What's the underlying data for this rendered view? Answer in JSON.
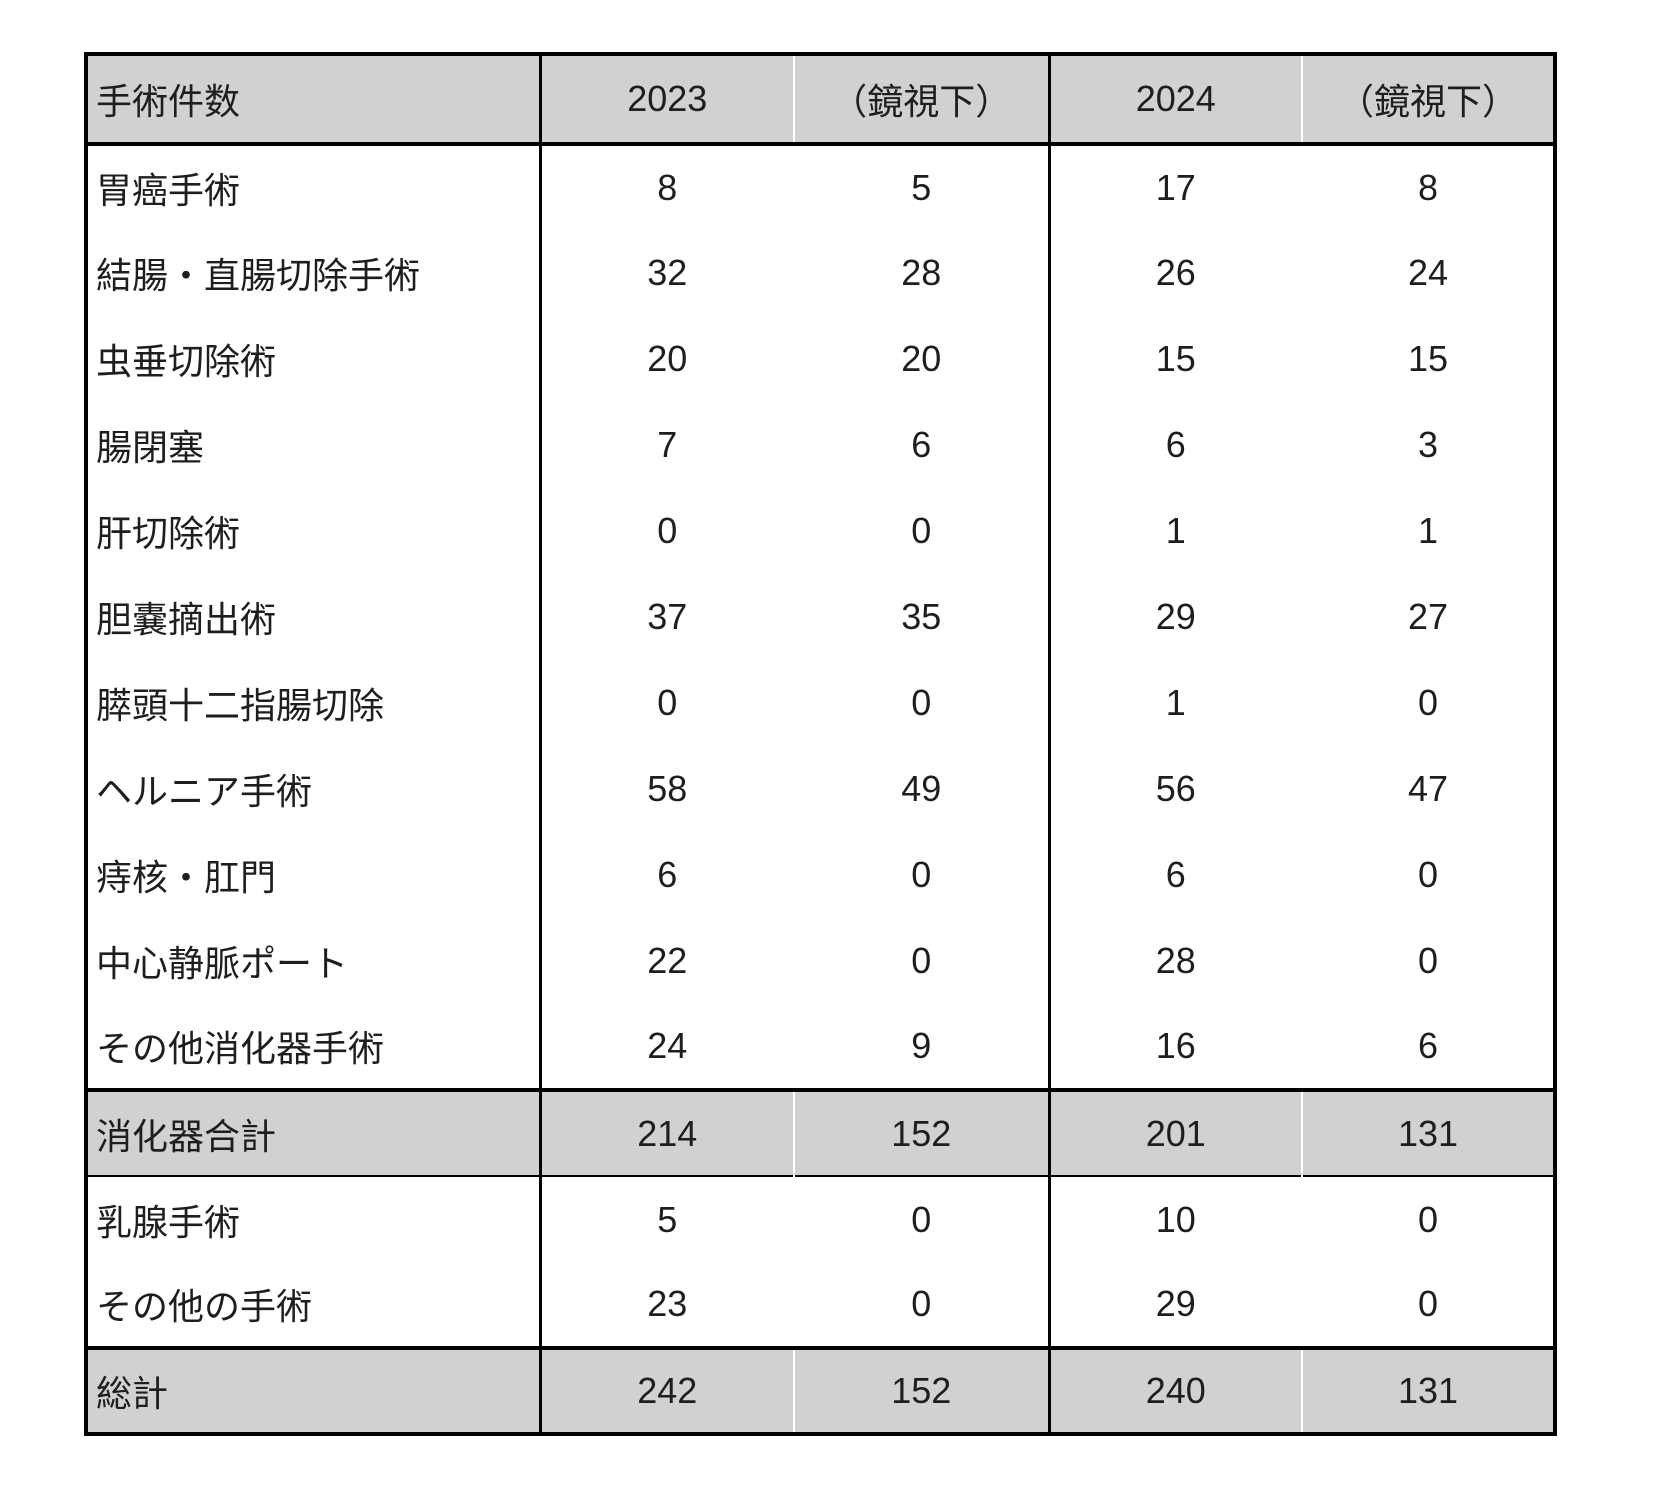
{
  "table": {
    "title_cell": "手術件数",
    "columns": [
      "2023",
      "（鏡視下）",
      "2024",
      "（鏡視下）"
    ],
    "rows": [
      {
        "label": "胃癌手術",
        "values": [
          "8",
          "5",
          "17",
          "8"
        ],
        "type": "data"
      },
      {
        "label": "結腸・直腸切除手術",
        "values": [
          "32",
          "28",
          "26",
          "24"
        ],
        "type": "data"
      },
      {
        "label": "虫垂切除術",
        "values": [
          "20",
          "20",
          "15",
          "15"
        ],
        "type": "data"
      },
      {
        "label": "腸閉塞",
        "values": [
          "7",
          "6",
          "6",
          "3"
        ],
        "type": "data"
      },
      {
        "label": "肝切除術",
        "values": [
          "0",
          "0",
          "1",
          "1"
        ],
        "type": "data"
      },
      {
        "label": "胆嚢摘出術",
        "values": [
          "37",
          "35",
          "29",
          "27"
        ],
        "type": "data"
      },
      {
        "label": "膵頭十二指腸切除",
        "values": [
          "0",
          "0",
          "1",
          "0"
        ],
        "type": "data"
      },
      {
        "label": "ヘルニア手術",
        "values": [
          "58",
          "49",
          "56",
          "47"
        ],
        "type": "data"
      },
      {
        "label": "痔核・肛門",
        "values": [
          "6",
          "0",
          "6",
          "0"
        ],
        "type": "data"
      },
      {
        "label": "中心静脈ポート",
        "values": [
          "22",
          "0",
          "28",
          "0"
        ],
        "type": "data"
      },
      {
        "label": "その他消化器手術",
        "values": [
          "24",
          "9",
          "16",
          "6"
        ],
        "type": "data"
      },
      {
        "label": "消化器合計",
        "values": [
          "214",
          "152",
          "201",
          "131"
        ],
        "type": "subtotal"
      },
      {
        "label": "乳腺手術",
        "values": [
          "5",
          "0",
          "10",
          "0"
        ],
        "type": "data"
      },
      {
        "label": "その他の手術",
        "values": [
          "23",
          "0",
          "29",
          "0"
        ],
        "type": "data"
      },
      {
        "label": "総計",
        "values": [
          "242",
          "152",
          "240",
          "131"
        ],
        "type": "total"
      }
    ],
    "colors": {
      "header_bg": "#d1d1d1",
      "total_row_bg": "#d1d1d1",
      "border": "#000000",
      "text": "#1e1e1e"
    }
  }
}
